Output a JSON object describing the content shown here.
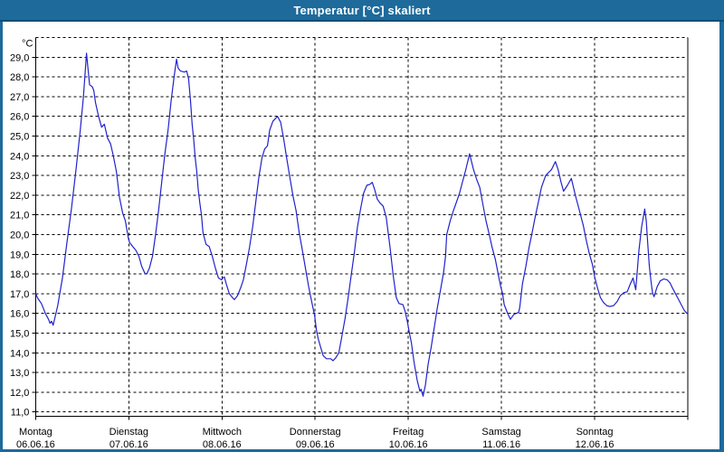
{
  "window": {
    "title": "Temperatur [°C] skaliert"
  },
  "colors": {
    "titlebar": "#1d6a9b",
    "titlebar_edge": "#124d74",
    "plot_background": "#ffffff",
    "grid": "#000000",
    "line": "#2222cc",
    "text": "#000000"
  },
  "chart_data": {
    "type": "line",
    "title": "Temperatur [°C] skaliert",
    "grid": true,
    "legend": "none",
    "y_axis": {
      "unit_label": "°C",
      "min": 11.0,
      "max": 30.0,
      "step": 1.0,
      "ticks": [
        {
          "value": 29,
          "label": "29,0"
        },
        {
          "value": 28,
          "label": "28,0"
        },
        {
          "value": 27,
          "label": "27,0"
        },
        {
          "value": 26,
          "label": "26,0"
        },
        {
          "value": 25,
          "label": "25,0"
        },
        {
          "value": 24,
          "label": "24,0"
        },
        {
          "value": 23,
          "label": "23,0"
        },
        {
          "value": 22,
          "label": "22,0"
        },
        {
          "value": 21,
          "label": "21,0"
        },
        {
          "value": 20,
          "label": "20,0"
        },
        {
          "value": 19,
          "label": "19,0"
        },
        {
          "value": 18,
          "label": "18,0"
        },
        {
          "value": 17,
          "label": "17,0"
        },
        {
          "value": 16,
          "label": "16,0"
        },
        {
          "value": 15,
          "label": "15,0"
        },
        {
          "value": 14,
          "label": "14,0"
        },
        {
          "value": 13,
          "label": "13,0"
        },
        {
          "value": 12,
          "label": "12,0"
        },
        {
          "value": 11,
          "label": "11,0"
        }
      ]
    },
    "x_axis": {
      "span_days": 7,
      "days": [
        {
          "label": "Montag",
          "date": "06.06.16"
        },
        {
          "label": "Dienstag",
          "date": "07.06.16"
        },
        {
          "label": "Mittwoch",
          "date": "08.06.16"
        },
        {
          "label": "Donnerstag",
          "date": "09.06.16"
        },
        {
          "label": "Freitag",
          "date": "10.06.16"
        },
        {
          "label": "Samstag",
          "date": "11.06.16"
        },
        {
          "label": "Sonntag",
          "date": "12.06.16"
        }
      ]
    },
    "series": [
      {
        "name": "Temperatur",
        "color": "#2222cc",
        "x_unit": "hours_from_monday_00",
        "points": [
          [
            0,
            17.0
          ],
          [
            0.6,
            16.75
          ],
          [
            1.5,
            16.5
          ],
          [
            2.5,
            16.0
          ],
          [
            3.3,
            15.7
          ],
          [
            3.7,
            15.5
          ],
          [
            4.1,
            15.6
          ],
          [
            4.5,
            15.4
          ],
          [
            5.1,
            15.9
          ],
          [
            5.7,
            16.4
          ],
          [
            6.9,
            17.8
          ],
          [
            8.0,
            19.5
          ],
          [
            9.2,
            21.3
          ],
          [
            10.4,
            23.3
          ],
          [
            11.5,
            25.3
          ],
          [
            12.3,
            27.0
          ],
          [
            13.1,
            29.2
          ],
          [
            13.5,
            28.4
          ],
          [
            13.9,
            27.6
          ],
          [
            14.6,
            27.5
          ],
          [
            15.0,
            27.3
          ],
          [
            15.4,
            26.7
          ],
          [
            16.2,
            26.0
          ],
          [
            17.0,
            25.45
          ],
          [
            17.7,
            25.6
          ],
          [
            18.5,
            24.9
          ],
          [
            19.3,
            24.6
          ],
          [
            20.0,
            24.0
          ],
          [
            20.8,
            23.2
          ],
          [
            21.6,
            21.9
          ],
          [
            22.4,
            21.1
          ],
          [
            23.1,
            20.7
          ],
          [
            23.9,
            19.8
          ],
          [
            24.2,
            19.6
          ],
          [
            25.0,
            19.4
          ],
          [
            25.8,
            19.2
          ],
          [
            26.6,
            18.9
          ],
          [
            27.3,
            18.4
          ],
          [
            28.1,
            18.05
          ],
          [
            28.6,
            18.0
          ],
          [
            29.3,
            18.3
          ],
          [
            30.1,
            18.9
          ],
          [
            30.9,
            20.0
          ],
          [
            31.7,
            21.3
          ],
          [
            32.5,
            22.7
          ],
          [
            33.3,
            24.1
          ],
          [
            34.1,
            25.3
          ],
          [
            34.9,
            26.8
          ],
          [
            35.7,
            28.05
          ],
          [
            36.3,
            28.9
          ],
          [
            36.7,
            28.45
          ],
          [
            37.3,
            28.3
          ],
          [
            38.3,
            28.25
          ],
          [
            38.9,
            28.3
          ],
          [
            39.4,
            27.9
          ],
          [
            39.9,
            26.8
          ],
          [
            40.3,
            25.6
          ],
          [
            40.7,
            24.85
          ],
          [
            41.1,
            23.9
          ],
          [
            41.5,
            23.2
          ],
          [
            41.9,
            22.25
          ],
          [
            42.3,
            21.6
          ],
          [
            42.7,
            21.0
          ],
          [
            43.1,
            20.1
          ],
          [
            43.5,
            19.8
          ],
          [
            43.9,
            19.5
          ],
          [
            44.7,
            19.4
          ],
          [
            45.5,
            18.9
          ],
          [
            46.3,
            18.3
          ],
          [
            47.1,
            17.8
          ],
          [
            47.9,
            17.7
          ],
          [
            48.2,
            17.8
          ],
          [
            48.6,
            17.85
          ],
          [
            49.1,
            17.5
          ],
          [
            49.9,
            17.0
          ],
          [
            50.7,
            16.8
          ],
          [
            51.2,
            16.7
          ],
          [
            52.0,
            16.9
          ],
          [
            52.8,
            17.3
          ],
          [
            53.5,
            17.7
          ],
          [
            54.3,
            18.5
          ],
          [
            55.1,
            19.35
          ],
          [
            55.9,
            20.4
          ],
          [
            56.7,
            21.65
          ],
          [
            57.5,
            22.9
          ],
          [
            58.3,
            23.9
          ],
          [
            59.0,
            24.35
          ],
          [
            59.7,
            24.5
          ],
          [
            60.3,
            25.3
          ],
          [
            61.1,
            25.75
          ],
          [
            62.3,
            26.0
          ],
          [
            63.1,
            25.7
          ],
          [
            63.9,
            24.85
          ],
          [
            64.7,
            23.85
          ],
          [
            65.5,
            22.9
          ],
          [
            66.3,
            21.95
          ],
          [
            67.1,
            21.2
          ],
          [
            67.9,
            20.1
          ],
          [
            68.7,
            19.2
          ],
          [
            69.5,
            18.3
          ],
          [
            70.3,
            17.4
          ],
          [
            71.1,
            16.6
          ],
          [
            71.9,
            15.85
          ],
          [
            72.3,
            15.2
          ],
          [
            72.8,
            14.7
          ],
          [
            73.4,
            14.3
          ],
          [
            74.1,
            13.85
          ],
          [
            74.9,
            13.7
          ],
          [
            76.0,
            13.7
          ],
          [
            76.6,
            13.6
          ],
          [
            77.3,
            13.75
          ],
          [
            78.1,
            14.0
          ],
          [
            78.9,
            14.85
          ],
          [
            79.7,
            15.75
          ],
          [
            80.5,
            16.8
          ],
          [
            81.3,
            17.95
          ],
          [
            82.1,
            19.1
          ],
          [
            82.9,
            20.4
          ],
          [
            83.7,
            21.3
          ],
          [
            84.5,
            22.1
          ],
          [
            85.3,
            22.5
          ],
          [
            86.1,
            22.55
          ],
          [
            86.7,
            22.65
          ],
          [
            87.3,
            22.3
          ],
          [
            88.0,
            21.8
          ],
          [
            88.7,
            21.6
          ],
          [
            89.5,
            21.45
          ],
          [
            90.3,
            20.9
          ],
          [
            91.3,
            19.35
          ],
          [
            92.1,
            17.95
          ],
          [
            92.9,
            16.8
          ],
          [
            93.6,
            16.5
          ],
          [
            94.6,
            16.45
          ],
          [
            95.2,
            16.1
          ],
          [
            95.8,
            15.55
          ],
          [
            96.2,
            15.1
          ],
          [
            96.8,
            14.5
          ],
          [
            97.5,
            13.5
          ],
          [
            98.3,
            12.6
          ],
          [
            99.0,
            12.05
          ],
          [
            99.3,
            12.15
          ],
          [
            99.8,
            11.8
          ],
          [
            100.4,
            12.35
          ],
          [
            101.1,
            13.4
          ],
          [
            101.9,
            14.3
          ],
          [
            102.7,
            15.3
          ],
          [
            103.5,
            16.3
          ],
          [
            104.3,
            17.2
          ],
          [
            105.1,
            18.1
          ],
          [
            105.6,
            18.9
          ],
          [
            105.9,
            20.0
          ],
          [
            106.8,
            20.7
          ],
          [
            107.6,
            21.2
          ],
          [
            108.4,
            21.65
          ],
          [
            109.2,
            22.1
          ],
          [
            110.0,
            22.7
          ],
          [
            110.8,
            23.3
          ],
          [
            111.8,
            24.1
          ],
          [
            112.8,
            23.3
          ],
          [
            113.6,
            22.8
          ],
          [
            114.4,
            22.4
          ],
          [
            115.2,
            21.55
          ],
          [
            116.0,
            20.7
          ],
          [
            116.8,
            20.05
          ],
          [
            117.6,
            19.35
          ],
          [
            118.4,
            18.75
          ],
          [
            119.2,
            17.95
          ],
          [
            119.8,
            17.35
          ],
          [
            120.3,
            17.0
          ],
          [
            120.7,
            16.45
          ],
          [
            121.5,
            16.05
          ],
          [
            122.3,
            15.7
          ],
          [
            123.2,
            15.95
          ],
          [
            124.4,
            16.05
          ],
          [
            124.7,
            16.3
          ],
          [
            125.4,
            17.5
          ],
          [
            126.3,
            18.4
          ],
          [
            127.1,
            19.35
          ],
          [
            127.9,
            20.1
          ],
          [
            128.7,
            20.9
          ],
          [
            129.5,
            21.65
          ],
          [
            130.3,
            22.4
          ],
          [
            131.4,
            23.0
          ],
          [
            132.9,
            23.3
          ],
          [
            133.9,
            23.7
          ],
          [
            134.6,
            23.3
          ],
          [
            135.3,
            22.7
          ],
          [
            136.0,
            22.2
          ],
          [
            137.0,
            22.5
          ],
          [
            138.0,
            22.85
          ],
          [
            139.1,
            21.95
          ],
          [
            139.9,
            21.35
          ],
          [
            141.1,
            20.45
          ],
          [
            141.8,
            19.75
          ],
          [
            142.6,
            19.05
          ],
          [
            143.4,
            18.5
          ],
          [
            144.0,
            17.85
          ],
          [
            144.8,
            17.25
          ],
          [
            145.5,
            16.8
          ],
          [
            146.3,
            16.55
          ],
          [
            147.1,
            16.4
          ],
          [
            147.9,
            16.35
          ],
          [
            148.9,
            16.4
          ],
          [
            149.8,
            16.6
          ],
          [
            150.6,
            16.9
          ],
          [
            151.5,
            17.05
          ],
          [
            152.4,
            17.1
          ],
          [
            153.2,
            17.5
          ],
          [
            153.9,
            17.8
          ],
          [
            154.6,
            17.2
          ],
          [
            155.4,
            19.2
          ],
          [
            156.1,
            20.4
          ],
          [
            156.9,
            21.3
          ],
          [
            157.3,
            20.7
          ],
          [
            157.7,
            19.5
          ],
          [
            158.1,
            18.4
          ],
          [
            158.5,
            17.65
          ],
          [
            158.9,
            17.05
          ],
          [
            159.3,
            16.85
          ],
          [
            160.1,
            17.35
          ],
          [
            160.9,
            17.65
          ],
          [
            161.8,
            17.75
          ],
          [
            162.7,
            17.7
          ],
          [
            163.4,
            17.55
          ],
          [
            163.9,
            17.35
          ],
          [
            164.7,
            17.05
          ],
          [
            165.5,
            16.75
          ],
          [
            166.3,
            16.45
          ],
          [
            167.1,
            16.15
          ],
          [
            167.8,
            16.0
          ]
        ]
      }
    ]
  }
}
